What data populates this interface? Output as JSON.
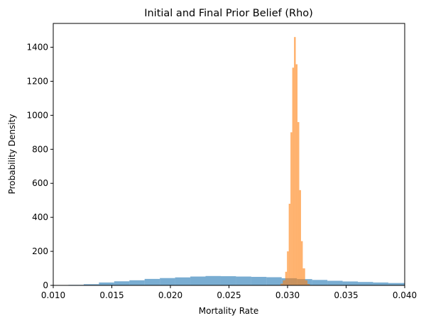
{
  "chart_data": {
    "type": "bar",
    "title": "Initial and Final Prior Belief (Rho)",
    "xlabel": "Mortality Rate",
    "ylabel": "Probability Density",
    "xlim": [
      0.01,
      0.04
    ],
    "ylim": [
      0,
      1540
    ],
    "x_ticks": [
      "0.010",
      "0.015",
      "0.020",
      "0.025",
      "0.030",
      "0.035",
      "0.040"
    ],
    "x_tick_values": [
      0.01,
      0.015,
      0.02,
      0.025,
      0.03,
      0.035,
      0.04
    ],
    "y_ticks": [
      "0",
      "200",
      "400",
      "600",
      "800",
      "1000",
      "1200",
      "1400"
    ],
    "y_tick_values": [
      0,
      200,
      400,
      600,
      800,
      1000,
      1200,
      1400
    ],
    "grid": false,
    "legend": "none",
    "series": [
      {
        "color": "#1f77b4",
        "opacity": 0.6,
        "bins": [
          [
            0.01,
            0.0113,
            1
          ],
          [
            0.0113,
            0.0126,
            3
          ],
          [
            0.0126,
            0.0139,
            7
          ],
          [
            0.0139,
            0.0152,
            17
          ],
          [
            0.0152,
            0.0165,
            24
          ],
          [
            0.0165,
            0.0178,
            30
          ],
          [
            0.0178,
            0.0191,
            38
          ],
          [
            0.0191,
            0.0204,
            43
          ],
          [
            0.0204,
            0.0217,
            47
          ],
          [
            0.0217,
            0.023,
            52
          ],
          [
            0.023,
            0.0243,
            55
          ],
          [
            0.0243,
            0.0256,
            54
          ],
          [
            0.0256,
            0.0269,
            52
          ],
          [
            0.0269,
            0.0282,
            50
          ],
          [
            0.0282,
            0.0295,
            48
          ],
          [
            0.0295,
            0.0308,
            42
          ],
          [
            0.0308,
            0.0321,
            37
          ],
          [
            0.0321,
            0.0334,
            32
          ],
          [
            0.0334,
            0.0347,
            27
          ],
          [
            0.0347,
            0.036,
            23
          ],
          [
            0.036,
            0.0373,
            20
          ],
          [
            0.0373,
            0.0386,
            17
          ],
          [
            0.0386,
            0.04,
            14
          ]
        ]
      },
      {
        "color": "#ff7f0e",
        "opacity": 0.6,
        "bins": [
          [
            0.0294,
            0.0296,
            10
          ],
          [
            0.0296,
            0.0298,
            30
          ],
          [
            0.0298,
            0.02995,
            80
          ],
          [
            0.02995,
            0.0301,
            200
          ],
          [
            0.0301,
            0.03025,
            480
          ],
          [
            0.03025,
            0.0304,
            900
          ],
          [
            0.0304,
            0.03055,
            1280
          ],
          [
            0.03055,
            0.0307,
            1460
          ],
          [
            0.0307,
            0.03085,
            1300
          ],
          [
            0.03085,
            0.031,
            960
          ],
          [
            0.031,
            0.03115,
            560
          ],
          [
            0.03115,
            0.0313,
            260
          ],
          [
            0.0313,
            0.0315,
            100
          ],
          [
            0.0315,
            0.0317,
            30
          ],
          [
            0.0317,
            0.0319,
            8
          ]
        ]
      }
    ]
  }
}
